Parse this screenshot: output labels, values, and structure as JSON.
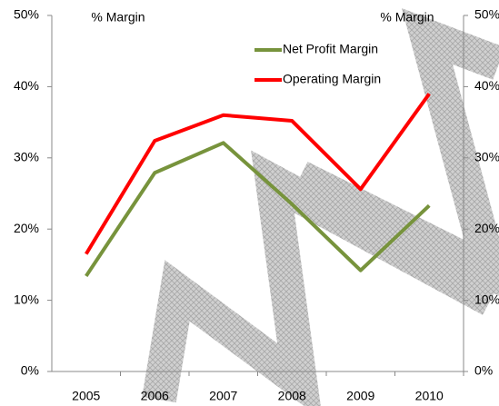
{
  "chart_data": {
    "type": "line",
    "y_label": "% Margin",
    "y2_label": "% Margin",
    "categories": [
      "2005",
      "2006",
      "2007",
      "2008",
      "2009",
      "2010"
    ],
    "series": [
      {
        "name": "Net Profit Margin",
        "color": "#77933c",
        "values": [
          13.4,
          27.9,
          32.1,
          23.5,
          14.2,
          23.3
        ]
      },
      {
        "name": "Operating Margin",
        "color": "#ff0000",
        "values": [
          16.5,
          32.4,
          36.0,
          35.2,
          25.6,
          39.0
        ]
      }
    ],
    "ylim": [
      0,
      50
    ],
    "yticks": [
      {
        "value": 0,
        "label": "0%"
      },
      {
        "value": 10,
        "label": "10%"
      },
      {
        "value": 20,
        "label": "20%"
      },
      {
        "value": 30,
        "label": "30%"
      },
      {
        "value": 40,
        "label": "40%"
      },
      {
        "value": 50,
        "label": "50%"
      }
    ],
    "y2lim": [
      0,
      50
    ],
    "y2ticks": [
      {
        "value": 0,
        "label": "0%"
      },
      {
        "value": 10,
        "label": "10%"
      },
      {
        "value": 20,
        "label": "20%"
      },
      {
        "value": 30,
        "label": "30%"
      },
      {
        "value": 40,
        "label": "40%"
      },
      {
        "value": 50,
        "label": "50%"
      }
    ],
    "grid": false,
    "legend": "top"
  }
}
